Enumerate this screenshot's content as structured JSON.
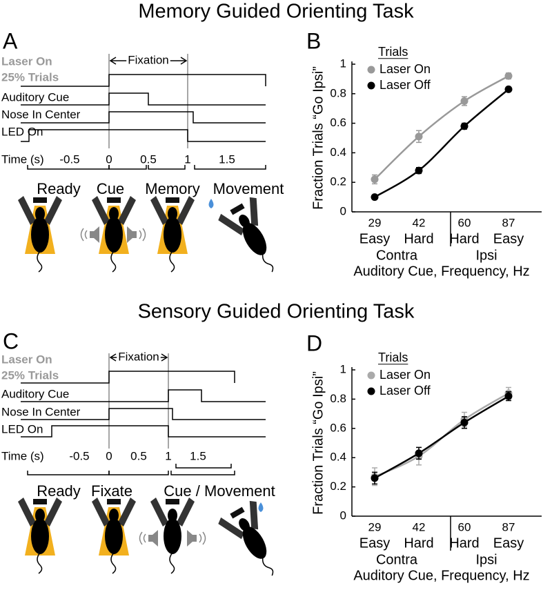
{
  "panels": [
    {
      "label": "A",
      "title": "Memory Guided Orienting Task",
      "laser": [
        "Laser On",
        "25% Trials"
      ],
      "fixation": "Fixation",
      "signals": [
        "Auditory Cue",
        "Nose In Center",
        "LED On"
      ],
      "time_label": "Time (s)",
      "xticks": [
        -0.5,
        0,
        0.5,
        1,
        1.5
      ],
      "phases": [
        "Ready",
        "Cue",
        "Memory",
        "Movement"
      ]
    },
    {
      "label": "C",
      "title": "Sensory Guided Orienting Task",
      "laser": [
        "Laser On",
        "25% Trials"
      ],
      "fixation": "Fixation",
      "signals": [
        "Auditory Cue",
        "Nose In Center",
        "LED On"
      ],
      "time_label": "Time (s)",
      "xticks": [
        -0.5,
        0,
        0.5,
        1,
        1.5
      ],
      "phases": [
        "Ready",
        "Fixate",
        "Cue / Movement"
      ]
    }
  ],
  "chart_data": [
    {
      "type": "line",
      "label": "B",
      "ylabel": "Fraction Trials “Go Ipsi”",
      "xlabel": "Auditory Cue, Frequency, Hz",
      "legend_title": "Trials",
      "categories": [
        "29",
        "42",
        "60",
        "87"
      ],
      "category_sublabels": [
        "Easy",
        "Hard",
        "Hard",
        "Easy"
      ],
      "groups": [
        "Contra",
        "Ipsi"
      ],
      "ylim": [
        0,
        1
      ],
      "yticks": [
        0,
        0.2,
        0.4,
        0.6,
        0.8,
        1
      ],
      "series": [
        {
          "name": "Laser On",
          "color": "#999999",
          "values": [
            0.22,
            0.51,
            0.75,
            0.92
          ],
          "errors": [
            0.03,
            0.04,
            0.03,
            0.02
          ]
        },
        {
          "name": "Laser Off",
          "color": "#000000",
          "values": [
            0.1,
            0.28,
            0.58,
            0.83
          ],
          "errors": [
            0.01,
            0.02,
            0.02,
            0.01
          ]
        }
      ]
    },
    {
      "type": "line",
      "label": "D",
      "ylabel": "Fraction Trials “Go Ipsi”",
      "xlabel": "Auditory Cue, Frequency, Hz",
      "legend_title": "Trials",
      "categories": [
        "29",
        "42",
        "60",
        "87"
      ],
      "category_sublabels": [
        "Easy",
        "Hard",
        "Hard",
        "Easy"
      ],
      "groups": [
        "Contra",
        "Ipsi"
      ],
      "ylim": [
        0,
        1
      ],
      "yticks": [
        0,
        0.2,
        0.4,
        0.6,
        0.8,
        1
      ],
      "series": [
        {
          "name": "Laser On",
          "color": "#aaaaaa",
          "values": [
            0.27,
            0.41,
            0.66,
            0.84
          ],
          "errors": [
            0.06,
            0.06,
            0.05,
            0.04
          ]
        },
        {
          "name": "Laser Off",
          "color": "#000000",
          "values": [
            0.26,
            0.43,
            0.64,
            0.82
          ],
          "errors": [
            0.04,
            0.04,
            0.04,
            0.03
          ]
        }
      ]
    }
  ]
}
